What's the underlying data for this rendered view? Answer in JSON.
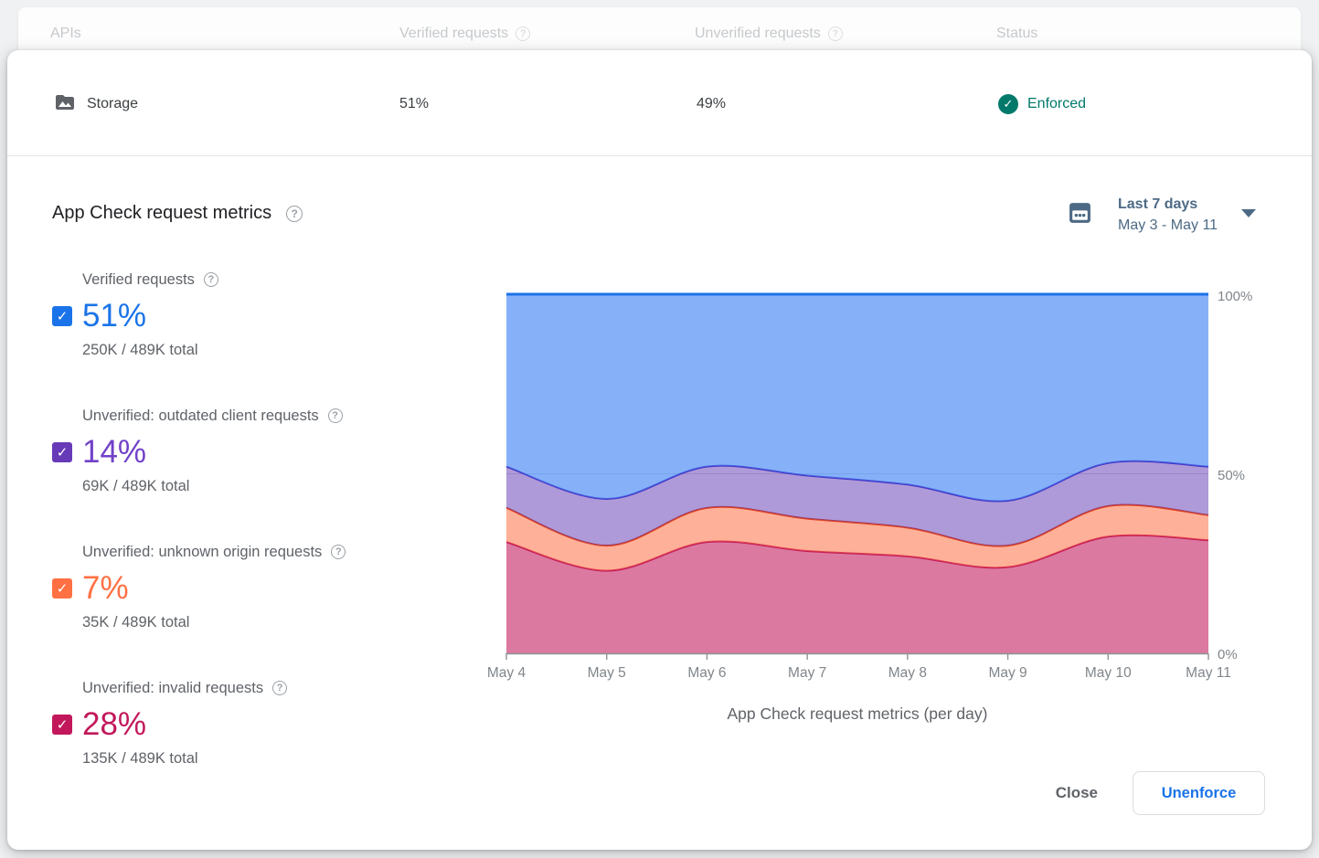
{
  "background_table": {
    "headers": [
      {
        "label": "APIs",
        "has_help": false
      },
      {
        "label": "Verified requests",
        "has_help": true
      },
      {
        "label": "Unverified requests",
        "has_help": true
      },
      {
        "label": "Status",
        "has_help": false
      }
    ]
  },
  "modal": {
    "api_row": {
      "api_name": "Storage",
      "verified": "51%",
      "unverified": "49%",
      "status_label": "Enforced",
      "status_color": "#00796b"
    },
    "section_title": "App Check request metrics",
    "date_picker": {
      "range_label": "Last 7 days",
      "range_dates": "May 3 - May 11"
    },
    "metrics": [
      {
        "label": "Verified requests",
        "value": "51%",
        "detail": "250K / 489K total",
        "value_color": "#1a73e8",
        "checkbox_color": "#1a73e8",
        "checked": true
      },
      {
        "label": "Unverified: outdated client requests",
        "value": "14%",
        "detail": "69K / 489K total",
        "value_color": "#7142c8",
        "checkbox_color": "#673ab7",
        "checked": true
      },
      {
        "label": "Unverified: unknown origin requests",
        "value": "7%",
        "detail": "35K / 489K total",
        "value_color": "#ff7043",
        "checkbox_color": "#ff7043",
        "checked": true
      },
      {
        "label": "Unverified: invalid requests",
        "value": "28%",
        "detail": "135K / 489K total",
        "value_color": "#c2185b",
        "checkbox_color": "#c2185b",
        "checked": true
      }
    ],
    "footer": {
      "close_label": "Close",
      "unenforce_label": "Unenforce"
    }
  },
  "chart_data": {
    "type": "area",
    "stacked": true,
    "normalized_percent": true,
    "x": [
      "May 4",
      "May 5",
      "May 6",
      "May 7",
      "May 8",
      "May 9",
      "May 10",
      "May 11"
    ],
    "series": [
      {
        "name": "Unverified: invalid requests",
        "line_color": "#c2185b",
        "fill_color": "rgba(194,24,91,0.58)",
        "values": [
          31,
          23,
          31,
          28.5,
          27,
          24,
          32.5,
          31.5
        ]
      },
      {
        "name": "Unverified: unknown origin requests",
        "line_color": "#e2431e",
        "fill_color": "rgba(255,112,67,0.55)",
        "values": [
          9.5,
          7,
          9.5,
          9,
          8,
          6,
          8.5,
          7
        ]
      },
      {
        "name": "Unverified: outdated client requests",
        "line_color": "#4733c6",
        "fill_color": "rgba(94,53,177,0.5)",
        "values": [
          11.5,
          13,
          11.5,
          12,
          12,
          12.5,
          12,
          13.5
        ]
      },
      {
        "name": "Verified requests",
        "line_color": "#1a73e8",
        "fill_color": "rgba(66,133,244,0.64)",
        "values": [
          48,
          57,
          48,
          50.5,
          53,
          57.5,
          47,
          48
        ]
      }
    ],
    "ylim": [
      0,
      100
    ],
    "ytick_labels": [
      "100%",
      "50%",
      "0%"
    ],
    "grid": {
      "h_line_at": 50
    },
    "legend": "none",
    "title": "App Check request metrics (per day)"
  }
}
